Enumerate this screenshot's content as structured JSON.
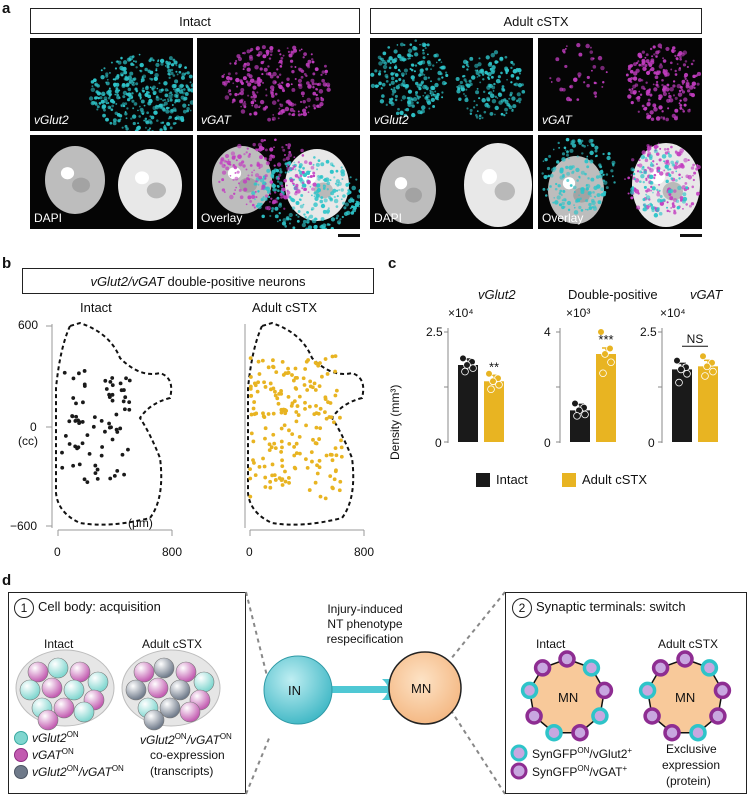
{
  "panel_a": {
    "letter": "a",
    "groups": [
      {
        "title": "Intact",
        "tiles": [
          {
            "label": "vGlut2",
            "italic": true,
            "kind": "cyan"
          },
          {
            "label": "vGAT",
            "italic": true,
            "kind": "magenta"
          },
          {
            "label": "DAPI",
            "italic": false,
            "kind": "dapi"
          },
          {
            "label": "Overlay",
            "italic": false,
            "kind": "overlay"
          }
        ]
      },
      {
        "title": "Adult cSTX",
        "tiles": [
          {
            "label": "vGlut2",
            "italic": true,
            "kind": "cyan"
          },
          {
            "label": "vGAT",
            "italic": true,
            "kind": "magenta"
          },
          {
            "label": "DAPI",
            "italic": false,
            "kind": "dapi"
          },
          {
            "label": "Overlay",
            "italic": false,
            "kind": "overlay"
          }
        ]
      }
    ]
  },
  "panel_b": {
    "letter": "b",
    "title_italic": "vGlut2/vGAT",
    "title_rest": " double-positive neurons",
    "plots": [
      {
        "title": "Intact",
        "color": "#1a1a1a",
        "count": 75
      },
      {
        "title": "Adult cSTX",
        "color": "#e8b422",
        "count": 200
      }
    ],
    "y_ticks": [
      "600",
      "0",
      "(cc)",
      "−600"
    ],
    "x_ticks": [
      "0",
      "800"
    ],
    "unit": "(μm)"
  },
  "chart_data": {
    "type": "bar",
    "ylabel": "Density (mm³)",
    "legend": [
      {
        "name": "Intact",
        "color": "#1a1a1a"
      },
      {
        "name": "Adult cSTX",
        "color": "#e8b422"
      }
    ],
    "legend_placement": "bottom",
    "subplots": [
      {
        "title": "vGlut2",
        "title_italic": true,
        "exponent_label": "×10⁴",
        "ymax_label": "2.5",
        "ymin_label": "0",
        "ylim": [
          0,
          2.5
        ],
        "values": [
          1.75,
          1.38
        ],
        "points": [
          [
            1.9,
            1.82,
            1.75,
            1.68,
            1.6
          ],
          [
            1.55,
            1.45,
            1.38,
            1.3,
            1.2
          ]
        ],
        "significance": "**"
      },
      {
        "title": "Double-positive",
        "title_italic": false,
        "exponent_label": "×10³",
        "ymax_label": "4",
        "ymin_label": "0",
        "ylim": [
          0,
          4
        ],
        "values": [
          1.15,
          3.2
        ],
        "points": [
          [
            1.4,
            1.25,
            1.15,
            1.0,
            0.95
          ],
          [
            4.0,
            3.4,
            3.2,
            2.9,
            2.5
          ]
        ],
        "significance": "***"
      },
      {
        "title": "vGAT",
        "title_italic": true,
        "exponent_label": "×10⁴",
        "ymax_label": "2.5",
        "ymin_label": "0",
        "ylim": [
          0,
          2.5
        ],
        "values": [
          1.65,
          1.72
        ],
        "points": [
          [
            1.85,
            1.7,
            1.65,
            1.55,
            1.35
          ],
          [
            1.95,
            1.8,
            1.72,
            1.6,
            1.5
          ]
        ],
        "significance": "NS"
      }
    ]
  },
  "panel_d": {
    "letter": "d",
    "left": {
      "number": "1",
      "title": "Cell body: acquisition",
      "intact": "Intact",
      "cstx": "Adult cSTX",
      "legend": [
        {
          "italic": "vGlut2",
          "sup": "ON",
          "tail": "",
          "tail_sup": "",
          "color": "#7fd6cf"
        },
        {
          "italic": "vGAT",
          "sup": "ON",
          "tail": "",
          "tail_sup": "",
          "color": "#c25ab0"
        },
        {
          "italic": "vGlut2",
          "sup": "ON",
          "tail": "/vGAT",
          "tail_sup": "ON",
          "color": "#6f7a8a"
        }
      ],
      "caption_italic1": "vGlut2",
      "caption_sup1": "ON",
      "caption_italic2": "/vGAT",
      "caption_sup2": "ON",
      "caption_line2": "co-expression",
      "caption_line3": "(transcripts)"
    },
    "middle": {
      "line1": "Injury-induced",
      "line2": "NT phenotype",
      "line3": "respecification",
      "in_label": "IN",
      "mn_label": "MN"
    },
    "right": {
      "number": "2",
      "title": "Synaptic terminals: switch",
      "intact": "Intact",
      "cstx": "Adult cSTX",
      "mn": "MN",
      "legend": [
        {
          "text": "SynGFP",
          "sup": "ON",
          "tail": "/vGlut2",
          "tail_sup": "+"
        },
        {
          "text": "SynGFP",
          "sup": "ON",
          "tail": "/vGAT",
          "tail_sup": "+"
        }
      ],
      "caption_line1": "Exclusive",
      "caption_line2": "expression",
      "caption_line3": "(protein)"
    }
  },
  "colors": {
    "cyan": "#2ec4c9",
    "magenta": "#c23dc0",
    "gold": "#e8b422",
    "peach": "#f8c99a",
    "in_cyan": "#4fc8d4"
  }
}
